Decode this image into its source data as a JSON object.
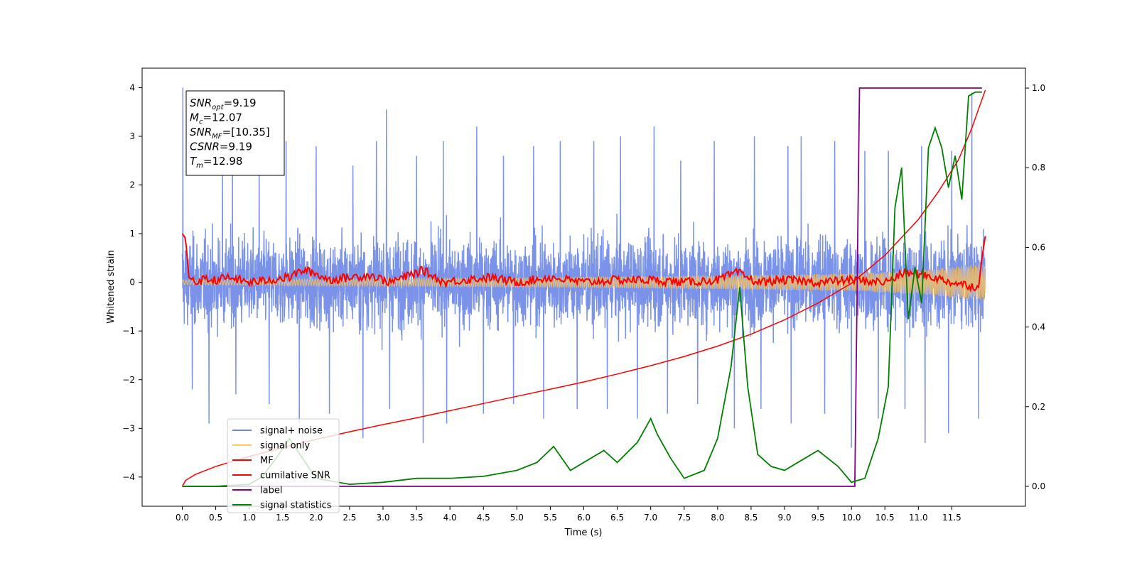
{
  "chart_data": {
    "type": "line",
    "title": "",
    "xlabel": "Time (s)",
    "ylabel": "Whitened strain",
    "y2label": "",
    "xlim": [
      -0.6,
      12.6
    ],
    "ylim": [
      -4.6,
      4.4
    ],
    "y2lim": [
      -0.05,
      1.05
    ],
    "x_ticks": [
      0.0,
      0.5,
      1.0,
      1.5,
      2.0,
      2.5,
      3.0,
      3.5,
      4.0,
      4.5,
      5.0,
      5.5,
      6.0,
      6.5,
      7.0,
      7.5,
      8.0,
      8.5,
      9.0,
      9.5,
      10.0,
      10.5,
      11.0,
      11.5
    ],
    "x_tick_labels": [
      "0.0",
      "0.5",
      "1.0",
      "1.5",
      "2.0",
      "2.5",
      "3.0",
      "3.5",
      "4.0",
      "4.5",
      "5.0",
      "5.5",
      "6.0",
      "6.5",
      "7.0",
      "7.5",
      "8.0",
      "8.5",
      "9.0",
      "9.5",
      "10.0",
      "10.5",
      "11.0",
      "11.5"
    ],
    "y_ticks": [
      -4,
      -3,
      -2,
      -1,
      0,
      1,
      2,
      3,
      4
    ],
    "y_tick_labels": [
      "−4",
      "−3",
      "−2",
      "−1",
      "0",
      "1",
      "2",
      "3",
      "4"
    ],
    "y2_ticks": [
      0.0,
      0.2,
      0.4,
      0.6,
      0.8,
      1.0
    ],
    "y2_tick_labels": [
      "0.0",
      "0.2",
      "0.4",
      "0.6",
      "0.8",
      "1.0"
    ],
    "grid": false,
    "legend_position": "bottom-left",
    "legend": [
      {
        "name": "signal+ noise",
        "color": "#6b87e6"
      },
      {
        "name": "signal only",
        "color": "#ffc55e"
      },
      {
        "name": "MF",
        "color": "#ff0000"
      },
      {
        "name": "cumilative SNR",
        "color": "#ff0000"
      },
      {
        "name": "label",
        "color": "#800080"
      },
      {
        "name": "signal statistics",
        "color": "#008000"
      }
    ],
    "annotation_box": [
      {
        "label": "SNR",
        "sub": "opt",
        "value": "=9.19"
      },
      {
        "label": "M",
        "sub": "c",
        "value": "=12.07"
      },
      {
        "label": "SNR",
        "sub": "MF",
        "value": "=[10.35]"
      },
      {
        "label": "CSNR",
        "sub": "",
        "value": "=9.19"
      },
      {
        "label": "T",
        "sub": "m",
        "value": "=12.98"
      }
    ],
    "series": [
      {
        "name": "signal+ noise",
        "axis": "left",
        "color": "#6b87e6",
        "x_range": [
          0,
          12.0
        ],
        "approx_amplitude": 1.0,
        "x_peaks": [
          0.01,
          0.6,
          0.75,
          1.15,
          1.55,
          2.0,
          2.55,
          2.9,
          3.05,
          3.5,
          3.9,
          4.4,
          4.8,
          5.25,
          5.65,
          6.15,
          6.55,
          7.05,
          7.45,
          7.95,
          8.55,
          9.05,
          9.25,
          9.75,
          10.2,
          10.55,
          11.05,
          11.5,
          11.8
        ],
        "y_peaks": [
          4.0,
          2.7,
          2.8,
          2.5,
          2.9,
          2.8,
          2.4,
          2.9,
          3.55,
          2.6,
          2.9,
          3.2,
          2.6,
          2.8,
          2.9,
          2.9,
          3.0,
          3.2,
          2.5,
          2.9,
          3.0,
          2.8,
          3.0,
          2.9,
          2.7,
          2.7,
          2.8,
          2.7,
          3.9
        ],
        "x_troughs": [
          0.15,
          0.4,
          0.8,
          1.3,
          1.75,
          2.2,
          2.7,
          3.1,
          3.6,
          3.95,
          4.5,
          4.95,
          5.4,
          5.9,
          6.35,
          6.8,
          7.25,
          7.7,
          8.25,
          8.65,
          9.1,
          9.6,
          10.0,
          10.4,
          10.8,
          11.1,
          11.45,
          11.9
        ],
        "y_troughs": [
          -2.2,
          -2.9,
          -2.3,
          -2.5,
          -2.9,
          -2.7,
          -3.2,
          -2.6,
          -3.3,
          -2.9,
          -2.7,
          -2.5,
          -2.8,
          -2.6,
          -2.6,
          -2.8,
          -2.7,
          -2.5,
          -3.0,
          -2.6,
          -2.9,
          -2.7,
          -3.4,
          -2.8,
          -2.6,
          -3.3,
          -3.1,
          -2.8
        ]
      },
      {
        "name": "signal only",
        "axis": "left",
        "color": "#ffc55e",
        "x_range": [
          0,
          12.0
        ],
        "envelope_x": [
          0,
          2,
          4,
          6,
          8,
          10,
          11,
          12
        ],
        "envelope_y": [
          0.05,
          0.07,
          0.09,
          0.11,
          0.14,
          0.18,
          0.25,
          0.38
        ]
      },
      {
        "name": "MF",
        "axis": "left",
        "color": "#ff0000",
        "x": [
          0.0,
          0.05,
          0.1,
          0.2,
          0.3,
          0.5,
          0.7,
          1.0,
          1.3,
          1.6,
          1.8,
          1.95,
          2.2,
          2.5,
          2.8,
          3.1,
          3.4,
          3.6,
          3.9,
          4.2,
          4.6,
          5.0,
          5.5,
          6.0,
          6.5,
          7.0,
          7.5,
          8.0,
          8.3,
          8.6,
          9.0,
          9.5,
          10.0,
          10.5,
          10.8,
          11.1,
          11.5,
          11.9,
          11.95,
          12.0
        ],
        "y": [
          1.0,
          0.9,
          0.1,
          0.0,
          0.05,
          0.05,
          0.1,
          0.0,
          0.05,
          0.1,
          0.25,
          0.2,
          0.05,
          0.1,
          0.15,
          0.0,
          0.15,
          0.25,
          0.0,
          0.05,
          0.1,
          0.0,
          0.1,
          0.0,
          0.05,
          0.05,
          0.0,
          0.05,
          0.2,
          0.0,
          0.05,
          0.0,
          0.05,
          0.0,
          0.2,
          0.15,
          0.0,
          -0.1,
          0.5,
          0.95
        ]
      },
      {
        "name": "cumilative SNR",
        "axis": "right",
        "color": "#ff0000",
        "x": [
          0.0,
          0.05,
          0.2,
          0.5,
          1.0,
          1.5,
          2.0,
          2.5,
          3.0,
          3.5,
          4.0,
          4.5,
          5.0,
          5.5,
          6.0,
          6.5,
          7.0,
          7.5,
          8.0,
          8.5,
          9.0,
          9.5,
          10.0,
          10.5,
          11.0,
          11.3,
          11.6,
          11.8,
          12.0
        ],
        "y": [
          0.0,
          0.015,
          0.03,
          0.05,
          0.075,
          0.097,
          0.118,
          0.137,
          0.155,
          0.172,
          0.19,
          0.208,
          0.226,
          0.244,
          0.262,
          0.282,
          0.303,
          0.326,
          0.352,
          0.382,
          0.418,
          0.46,
          0.51,
          0.58,
          0.67,
          0.74,
          0.82,
          0.9,
          0.995
        ]
      },
      {
        "name": "label",
        "axis": "right",
        "color": "#800080",
        "x": [
          0.0,
          10.05,
          10.12,
          11.95
        ],
        "y": [
          0.0,
          0.0,
          1.0,
          1.0
        ]
      },
      {
        "name": "signal statistics",
        "axis": "right",
        "color": "#008000",
        "x": [
          0.0,
          0.5,
          1.0,
          1.2,
          1.4,
          1.6,
          1.8,
          2.0,
          2.5,
          3.0,
          3.5,
          4.0,
          4.5,
          5.0,
          5.3,
          5.55,
          5.8,
          6.1,
          6.3,
          6.5,
          6.8,
          7.0,
          7.1,
          7.3,
          7.5,
          7.8,
          8.0,
          8.2,
          8.33,
          8.45,
          8.6,
          8.8,
          9.0,
          9.2,
          9.5,
          9.8,
          10.0,
          10.2,
          10.4,
          10.55,
          10.65,
          10.75,
          10.85,
          10.95,
          11.05,
          11.15,
          11.25,
          11.35,
          11.45,
          11.55,
          11.65,
          11.75,
          11.85,
          11.95
        ],
        "y": [
          0.0,
          0.0,
          0.005,
          0.025,
          0.07,
          0.12,
          0.07,
          0.02,
          0.005,
          0.01,
          0.02,
          0.02,
          0.025,
          0.04,
          0.06,
          0.1,
          0.04,
          0.07,
          0.09,
          0.06,
          0.11,
          0.17,
          0.13,
          0.07,
          0.02,
          0.04,
          0.12,
          0.3,
          0.5,
          0.25,
          0.08,
          0.05,
          0.04,
          0.06,
          0.09,
          0.05,
          0.01,
          0.02,
          0.12,
          0.25,
          0.7,
          0.8,
          0.42,
          0.55,
          0.46,
          0.85,
          0.9,
          0.85,
          0.75,
          0.83,
          0.72,
          0.98,
          0.99,
          0.99
        ]
      }
    ]
  }
}
